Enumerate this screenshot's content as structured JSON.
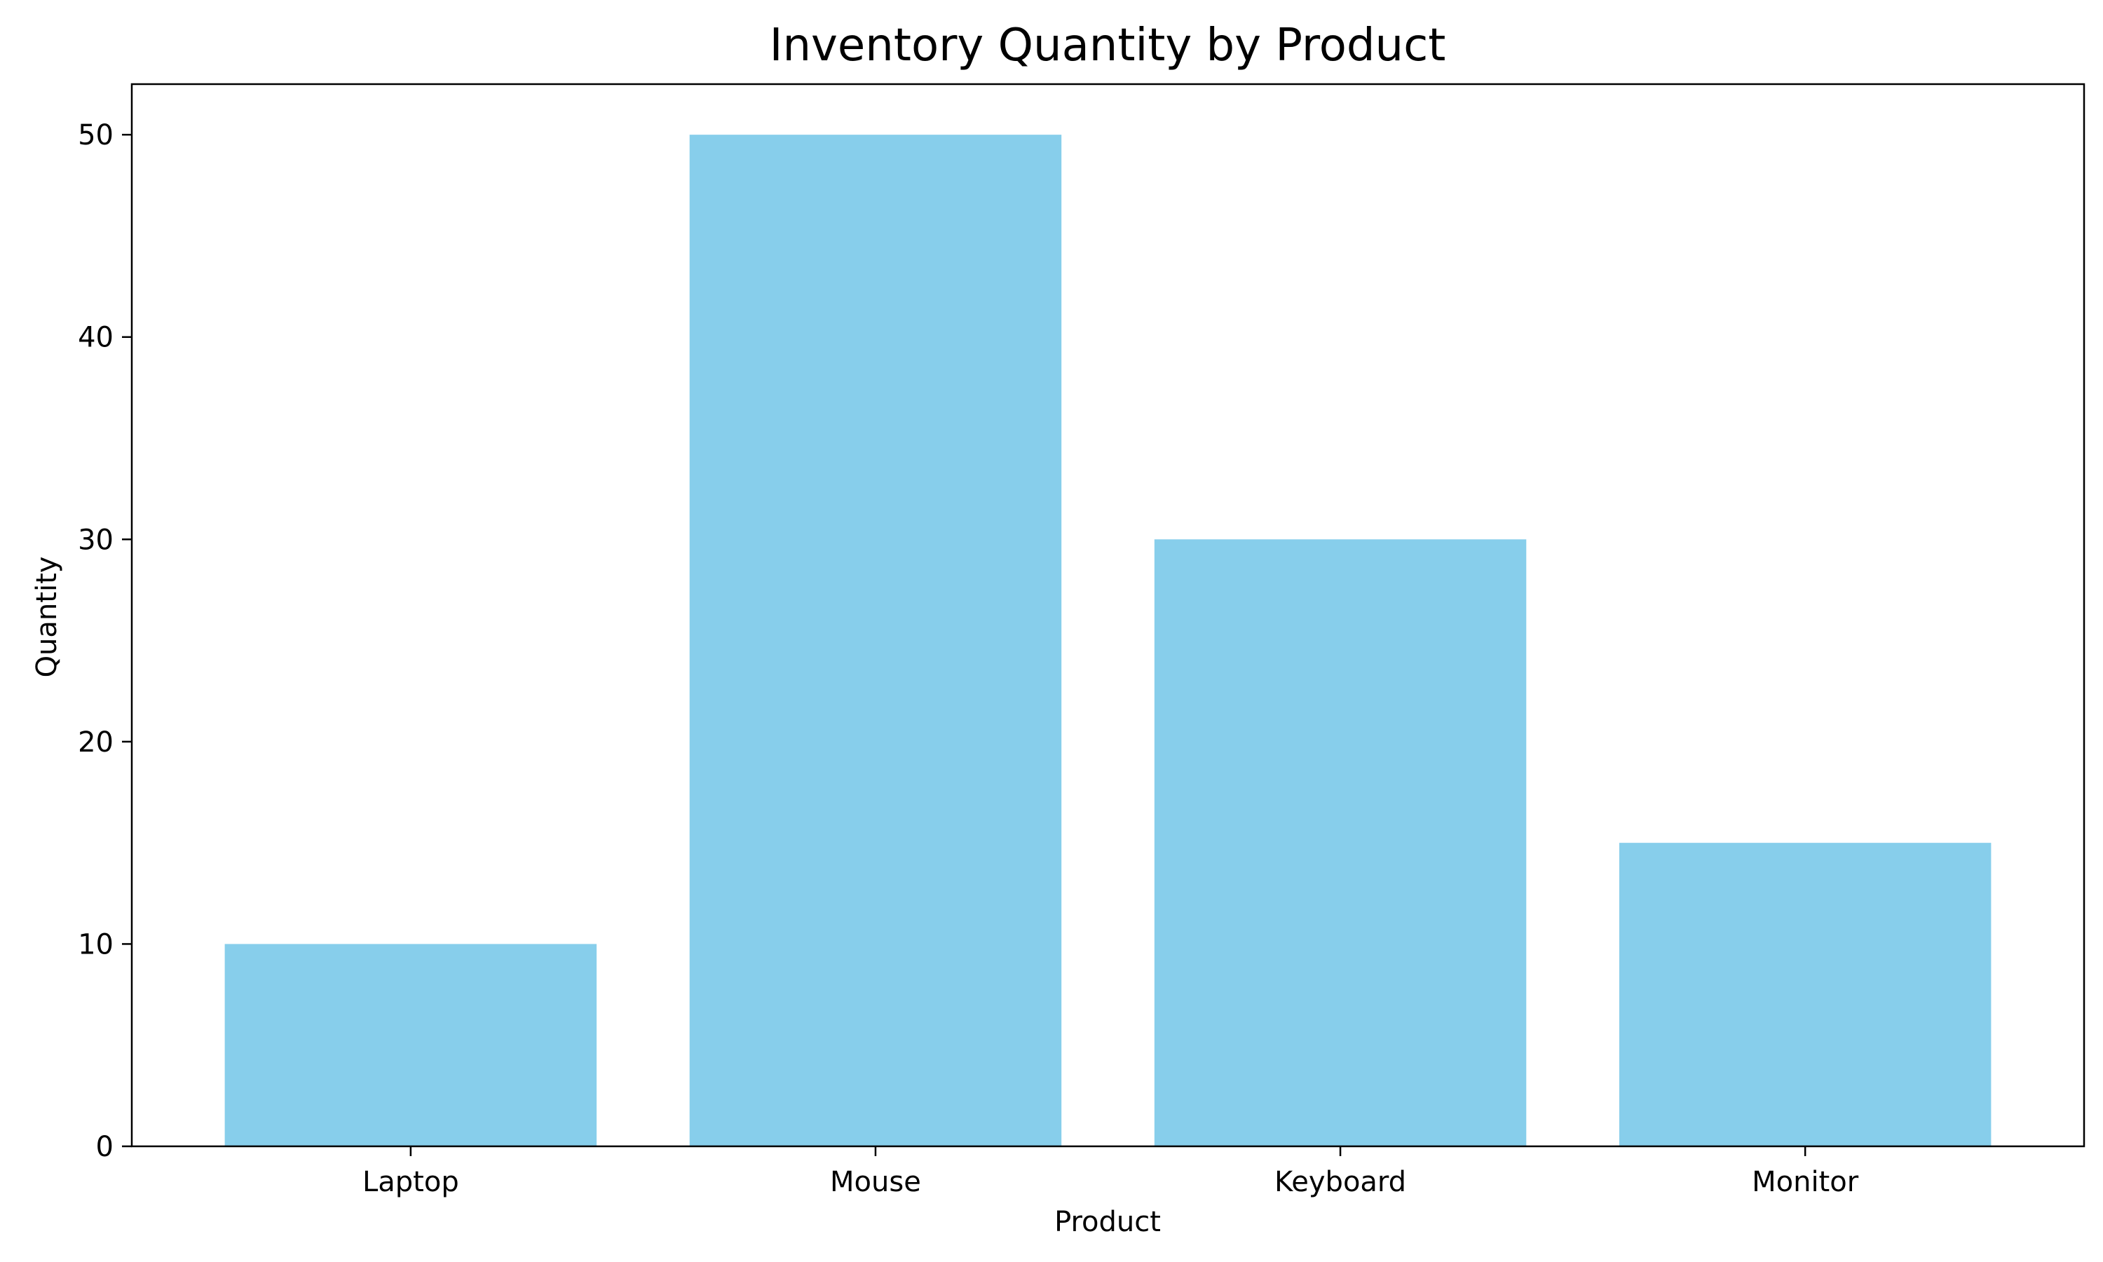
{
  "chart_data": {
    "type": "bar",
    "title": "Inventory Quantity by Product",
    "xlabel": "Product",
    "ylabel": "Quantity",
    "categories": [
      "Laptop",
      "Mouse",
      "Keyboard",
      "Monitor"
    ],
    "values": [
      10,
      50,
      30,
      15
    ],
    "ylim": [
      0,
      52.5
    ],
    "yticks": [
      0,
      10,
      20,
      30,
      40,
      50
    ],
    "grid": false,
    "legend": "none",
    "bar_color": "#87ceeb",
    "axis_color": "#000000"
  }
}
